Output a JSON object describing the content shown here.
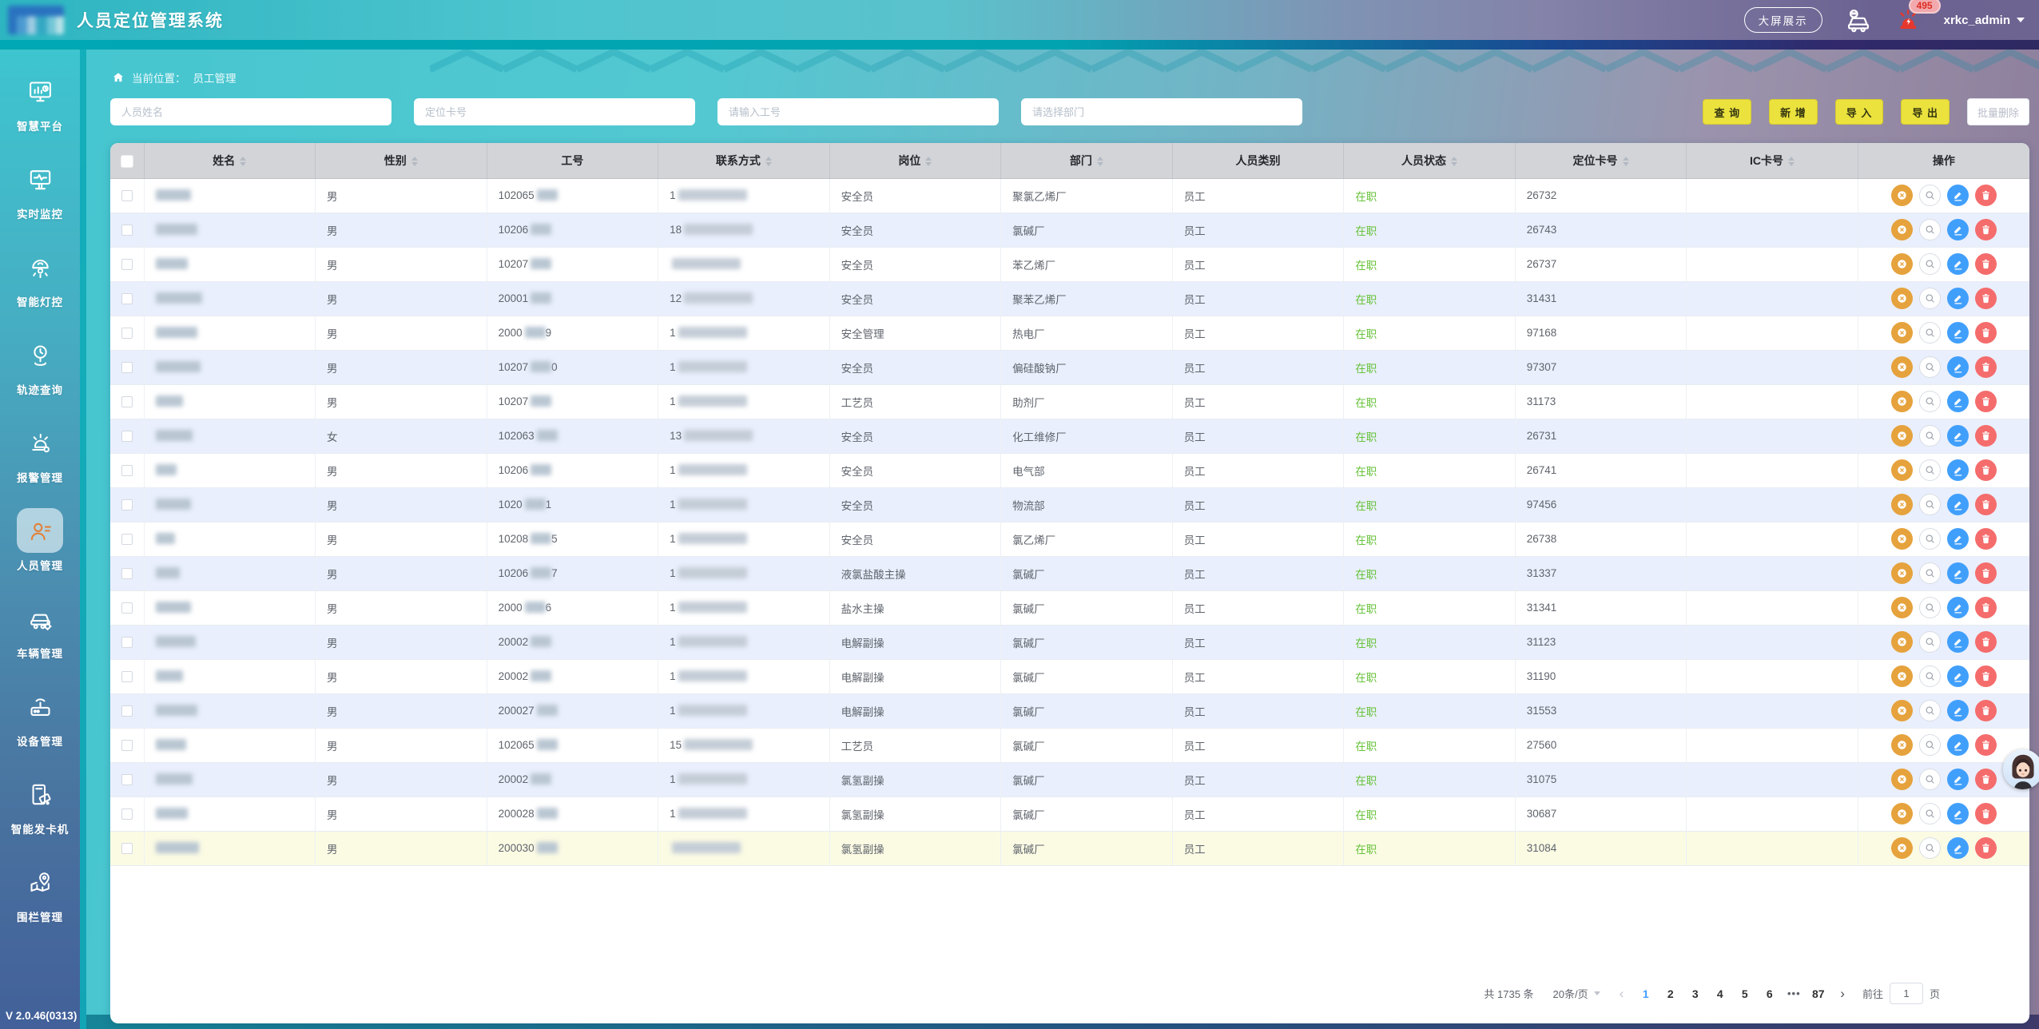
{
  "app": {
    "title": "人员定位管理系统",
    "version": "V 2.0.46(0313)",
    "header": {
      "big_screen": "大屏展示",
      "alarm_count": "495",
      "username": "xrkc_admin"
    }
  },
  "colors": {
    "header_teal": "#2db5c1",
    "header_purple": "#6e6492",
    "accent_strip": "#00a7b4",
    "button_yellow": "#ece23e",
    "status_green": "#67c23a",
    "edit_blue": "#419ffc",
    "delete_red": "#f56c6c",
    "issue_orange": "#e6a23c",
    "active_page_blue": "#409eff"
  },
  "sidebar": {
    "items": [
      {
        "label": "智慧平台",
        "icon": "smart-platform",
        "active": false
      },
      {
        "label": "实时监控",
        "icon": "realtime-monitor",
        "active": false
      },
      {
        "label": "智能灯控",
        "icon": "smart-light",
        "active": false
      },
      {
        "label": "轨迹查询",
        "icon": "track-query",
        "active": false
      },
      {
        "label": "报警管理",
        "icon": "alarm-manage",
        "active": false
      },
      {
        "label": "人员管理",
        "icon": "person-manage",
        "active": true
      },
      {
        "label": "车辆管理",
        "icon": "vehicle-manage",
        "active": false
      },
      {
        "label": "设备管理",
        "icon": "device-manage",
        "active": false
      },
      {
        "label": "智能发卡机",
        "icon": "card-machine",
        "active": false
      },
      {
        "label": "围栏管理",
        "icon": "fence-manage",
        "active": false
      }
    ]
  },
  "breadcrumb": {
    "prefix": "当前位置：",
    "current": "员工管理"
  },
  "filters": {
    "inputs": [
      {
        "name": "person-name",
        "placeholder": "人员姓名"
      },
      {
        "name": "location-card",
        "placeholder": "定位卡号"
      },
      {
        "name": "work-no",
        "placeholder": "请输入工号"
      },
      {
        "name": "department",
        "placeholder": "请选择部门"
      }
    ],
    "buttons": [
      {
        "name": "search",
        "label": "查 询",
        "style": "yellow"
      },
      {
        "name": "add",
        "label": "新 增",
        "style": "yellow"
      },
      {
        "name": "import",
        "label": "导 入",
        "style": "yellow"
      },
      {
        "name": "export",
        "label": "导 出",
        "style": "yellow"
      },
      {
        "name": "batch-delete",
        "label": "批量删除",
        "style": "plain"
      }
    ]
  },
  "table": {
    "columns": [
      {
        "label": "姓名",
        "sortable": true
      },
      {
        "label": "性别",
        "sortable": true
      },
      {
        "label": "工号",
        "sortable": false
      },
      {
        "label": "联系方式",
        "sortable": true
      },
      {
        "label": "岗位",
        "sortable": true
      },
      {
        "label": "部门",
        "sortable": true
      },
      {
        "label": "人员类别",
        "sortable": false
      },
      {
        "label": "人员状态",
        "sortable": true
      },
      {
        "label": "定位卡号",
        "sortable": true
      },
      {
        "label": "IC卡号",
        "sortable": true
      },
      {
        "label": "操作",
        "sortable": false
      }
    ],
    "row_actions": [
      "unbind-card",
      "view",
      "edit",
      "delete"
    ],
    "rows": [
      {
        "name_redacted": true,
        "gender": "男",
        "work_no_prefix": "102065",
        "work_no_suffix": "",
        "phone_prefix": "1",
        "position": "安全员",
        "department": "聚氯乙烯厂",
        "category": "员工",
        "status": "在职",
        "location_card": "26732",
        "ic_card": ""
      },
      {
        "name_redacted": true,
        "gender": "男",
        "work_no_prefix": "10206",
        "work_no_suffix": "",
        "phone_prefix": "18",
        "position": "安全员",
        "department": "氯碱厂",
        "category": "员工",
        "status": "在职",
        "location_card": "26743",
        "ic_card": ""
      },
      {
        "name_redacted": true,
        "gender": "男",
        "work_no_prefix": "10207",
        "work_no_suffix": "",
        "phone_prefix": "",
        "position": "安全员",
        "department": "苯乙烯厂",
        "category": "员工",
        "status": "在职",
        "location_card": "26737",
        "ic_card": ""
      },
      {
        "name_redacted": true,
        "gender": "男",
        "work_no_prefix": "20001",
        "work_no_suffix": "",
        "phone_prefix": "12",
        "position": "安全员",
        "department": "聚苯乙烯厂",
        "category": "员工",
        "status": "在职",
        "location_card": "31431",
        "ic_card": ""
      },
      {
        "name_redacted": true,
        "gender": "男",
        "work_no_prefix": "2000",
        "work_no_suffix": "9",
        "phone_prefix": "1",
        "position": "安全管理",
        "department": "热电厂",
        "category": "员工",
        "status": "在职",
        "location_card": "97168",
        "ic_card": ""
      },
      {
        "name_redacted": true,
        "gender": "男",
        "work_no_prefix": "10207",
        "work_no_suffix": "0",
        "phone_prefix": "1",
        "position": "安全员",
        "department": "偏硅酸钠厂",
        "category": "员工",
        "status": "在职",
        "location_card": "97307",
        "ic_card": ""
      },
      {
        "name_redacted": true,
        "gender": "男",
        "work_no_prefix": "10207",
        "work_no_suffix": "",
        "phone_prefix": "1",
        "position": "工艺员",
        "department": "助剂厂",
        "category": "员工",
        "status": "在职",
        "location_card": "31173",
        "ic_card": ""
      },
      {
        "name_redacted": true,
        "gender": "女",
        "work_no_prefix": "102063",
        "work_no_suffix": "",
        "phone_prefix": "13",
        "position": "安全员",
        "department": "化工维修厂",
        "category": "员工",
        "status": "在职",
        "location_card": "26731",
        "ic_card": ""
      },
      {
        "name_redacted": true,
        "gender": "男",
        "work_no_prefix": "10206",
        "work_no_suffix": "",
        "phone_prefix": "1",
        "position": "安全员",
        "department": "电气部",
        "category": "员工",
        "status": "在职",
        "location_card": "26741",
        "ic_card": ""
      },
      {
        "name_redacted": true,
        "gender": "男",
        "work_no_prefix": "1020",
        "work_no_suffix": "1",
        "phone_prefix": "1",
        "position": "安全员",
        "department": "物流部",
        "category": "员工",
        "status": "在职",
        "location_card": "97456",
        "ic_card": ""
      },
      {
        "name_redacted": true,
        "gender": "男",
        "work_no_prefix": "10208",
        "work_no_suffix": "5",
        "phone_prefix": "1",
        "position": "安全员",
        "department": "氯乙烯厂",
        "category": "员工",
        "status": "在职",
        "location_card": "26738",
        "ic_card": ""
      },
      {
        "name_redacted": true,
        "gender": "男",
        "work_no_prefix": "10206",
        "work_no_suffix": "7",
        "phone_prefix": "1",
        "position": "液氯盐酸主操",
        "department": "氯碱厂",
        "category": "员工",
        "status": "在职",
        "location_card": "31337",
        "ic_card": ""
      },
      {
        "name_redacted": true,
        "gender": "男",
        "work_no_prefix": "2000",
        "work_no_suffix": "6",
        "phone_prefix": "1",
        "position": "盐水主操",
        "department": "氯碱厂",
        "category": "员工",
        "status": "在职",
        "location_card": "31341",
        "ic_card": ""
      },
      {
        "name_redacted": true,
        "gender": "男",
        "work_no_prefix": "20002",
        "work_no_suffix": "",
        "phone_prefix": "1",
        "position": "电解副操",
        "department": "氯碱厂",
        "category": "员工",
        "status": "在职",
        "location_card": "31123",
        "ic_card": ""
      },
      {
        "name_redacted": true,
        "gender": "男",
        "work_no_prefix": "20002",
        "work_no_suffix": "",
        "phone_prefix": "1",
        "position": "电解副操",
        "department": "氯碱厂",
        "category": "员工",
        "status": "在职",
        "location_card": "31190",
        "ic_card": ""
      },
      {
        "name_redacted": true,
        "gender": "男",
        "work_no_prefix": "200027",
        "work_no_suffix": "",
        "phone_prefix": "1",
        "position": "电解副操",
        "department": "氯碱厂",
        "category": "员工",
        "status": "在职",
        "location_card": "31553",
        "ic_card": ""
      },
      {
        "name_redacted": true,
        "gender": "男",
        "work_no_prefix": "102065",
        "work_no_suffix": "",
        "phone_prefix": "15",
        "position": "工艺员",
        "department": "氯碱厂",
        "category": "员工",
        "status": "在职",
        "location_card": "27560",
        "ic_card": ""
      },
      {
        "name_redacted": true,
        "gender": "男",
        "work_no_prefix": "20002",
        "work_no_suffix": "",
        "phone_prefix": "1",
        "position": "氯氢副操",
        "department": "氯碱厂",
        "category": "员工",
        "status": "在职",
        "location_card": "31075",
        "ic_card": ""
      },
      {
        "name_redacted": true,
        "gender": "男",
        "work_no_prefix": "200028",
        "work_no_suffix": "",
        "phone_prefix": "1",
        "position": "氯氢副操",
        "department": "氯碱厂",
        "category": "员工",
        "status": "在职",
        "location_card": "30687",
        "ic_card": ""
      },
      {
        "name_redacted": true,
        "gender": "男",
        "work_no_prefix": "200030",
        "work_no_suffix": "",
        "phone_prefix": "",
        "position": "氯氢副操",
        "department": "氯碱厂",
        "category": "员工",
        "status": "在职",
        "location_card": "31084",
        "ic_card": "",
        "highlight": true
      }
    ]
  },
  "pagination": {
    "total": "共 1735 条",
    "page_size": "20条/页",
    "prev": "‹",
    "next": "›",
    "pages": [
      "1",
      "2",
      "3",
      "4",
      "5",
      "6"
    ],
    "ellipsis": "•••",
    "last_page": "87",
    "active_page": "1",
    "goto_label": "前往",
    "goto_value": "1",
    "goto_unit": "页"
  }
}
